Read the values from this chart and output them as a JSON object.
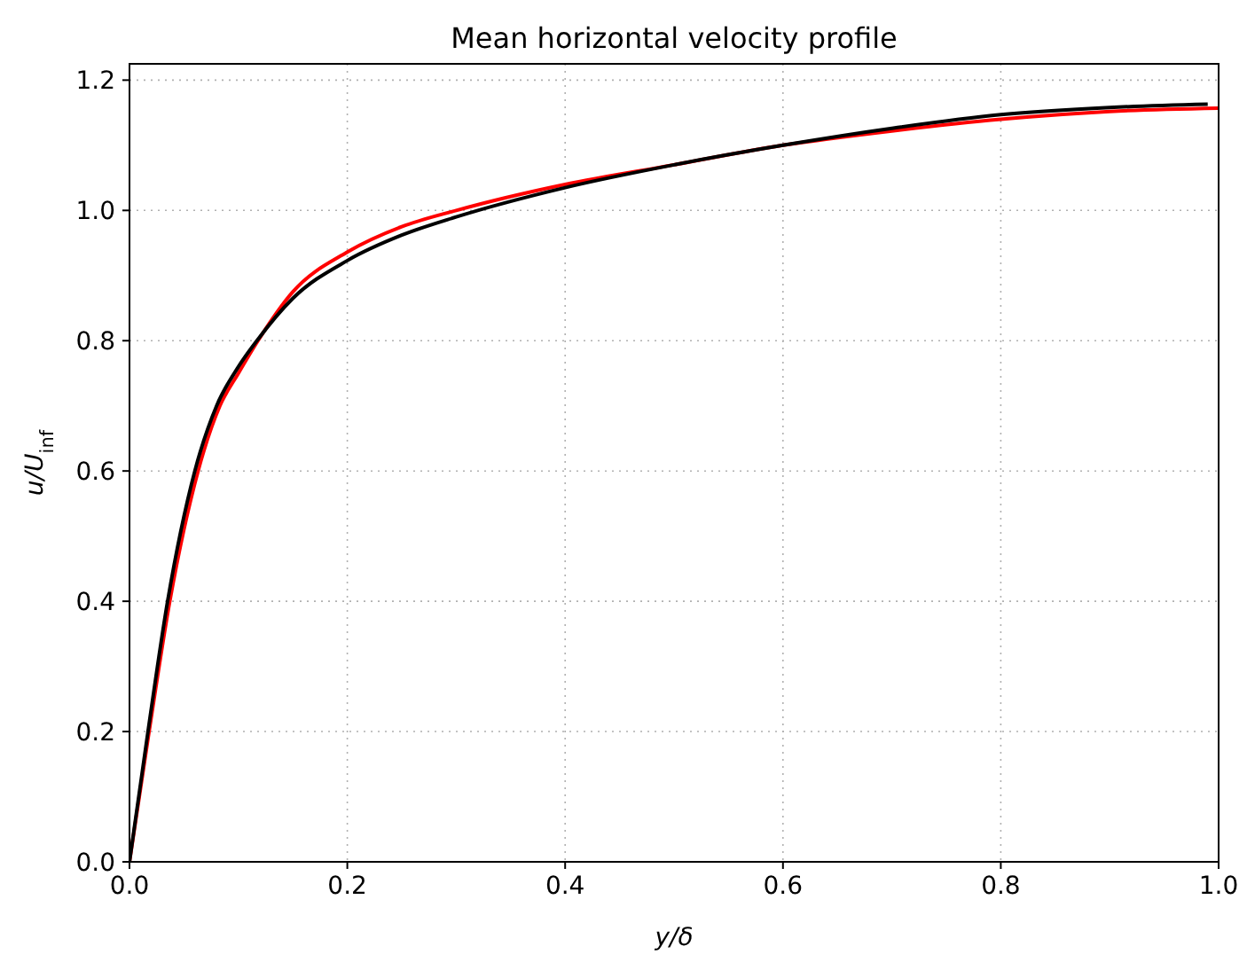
{
  "chart_data": {
    "type": "line",
    "title": "Mean horizontal velocity profile",
    "xlabel": "y/δ",
    "ylabel": "u/U$_{inf}$",
    "xlim": [
      0,
      1
    ],
    "ylim": [
      0,
      1.225
    ],
    "xticks": [
      {
        "value": 0,
        "label": "0.0"
      },
      0.2,
      0.4,
      0.6,
      0.8,
      {
        "value": 1,
        "label": "1.0"
      }
    ],
    "yticks": [
      {
        "value": 0,
        "label": "0.0"
      },
      0.2,
      0.4,
      0.6,
      0.8,
      {
        "value": 1,
        "label": "1.0"
      },
      1.2
    ],
    "grid": true,
    "line_style": "solid",
    "series": [
      {
        "color": "#ff0000",
        "x": [
          0,
          0.018,
          0.037,
          0.063,
          0.083,
          0.1,
          0.118,
          0.15,
          0.2,
          0.25,
          0.3,
          0.4,
          0.5,
          0.6,
          0.7,
          0.8,
          0.9,
          1.0
        ],
        "values": [
          0,
          0.2,
          0.4,
          0.6,
          0.7,
          0.75,
          0.8,
          0.875,
          0.936,
          0.975,
          1.0,
          1.04,
          1.07,
          1.1,
          1.122,
          1.14,
          1.152,
          1.157
        ]
      },
      {
        "color": "#000000",
        "x": [
          0,
          0.017,
          0.035,
          0.06,
          0.08,
          0.1,
          0.117,
          0.15,
          0.2,
          0.25,
          0.3,
          0.4,
          0.5,
          0.6,
          0.7,
          0.8,
          0.9,
          0.99
        ],
        "values": [
          0,
          0.2,
          0.4,
          0.6,
          0.7,
          0.76,
          0.8,
          0.865,
          0.923,
          0.962,
          0.99,
          1.035,
          1.07,
          1.1,
          1.126,
          1.147,
          1.158,
          1.163
        ]
      }
    ]
  }
}
